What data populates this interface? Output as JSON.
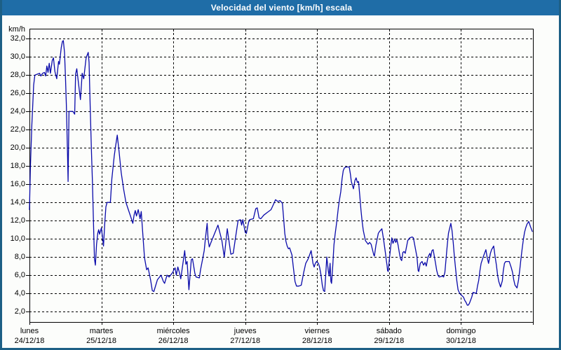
{
  "window": {
    "title": "Velocidad del viento [km/h] escala"
  },
  "colors": {
    "title_bar_bg": "#1f6da7",
    "title_text": "#ffffff",
    "window_border": "#1d5f85",
    "background": "#fcfdfb",
    "plot_border": "#000000",
    "gridline": "#000000",
    "line": "#0a0aaa",
    "label_text": "#000000"
  },
  "chart_data": {
    "type": "line",
    "title": "Velocidad del viento [km/h] escala",
    "series_name": "Velocidad del viento",
    "ylabel": "km/h",
    "grid": "dashed",
    "legend": "none",
    "y_axis": {
      "tick_values": [
        2,
        4,
        6,
        8,
        10,
        12,
        14,
        16,
        18,
        20,
        22,
        24,
        26,
        28,
        30,
        32
      ],
      "tick_labels": [
        "2,0",
        "4,0",
        "6,0",
        "8,0",
        "10,0",
        "12,0",
        "14,0",
        "16,0",
        "18,0",
        "20,0",
        "22,0",
        "24,0",
        "26,0",
        "28,0",
        "30,0",
        "32,0"
      ],
      "plot_top_value": 33.1,
      "plot_bottom_value": 0.85
    },
    "x_axis": {
      "hours_total": 168,
      "days": [
        {
          "name": "lunes",
          "date": "24/12/18"
        },
        {
          "name": "martes",
          "date": "25/12/18"
        },
        {
          "name": "miércoles",
          "date": "26/12/18"
        },
        {
          "name": "jueves",
          "date": "27/12/18"
        },
        {
          "name": "viernes",
          "date": "28/12/18"
        },
        {
          "name": "sábado",
          "date": "29/12/18"
        },
        {
          "name": "domingo",
          "date": "30/12/18"
        }
      ]
    },
    "points_hours_kmh": [
      [
        0,
        13.2
      ],
      [
        0.3,
        17.8
      ],
      [
        0.8,
        22.5
      ],
      [
        1.4,
        26.9
      ],
      [
        1.8,
        28.0
      ],
      [
        2.6,
        28.1
      ],
      [
        3.4,
        28.2
      ],
      [
        3.8,
        27.9
      ],
      [
        4.4,
        28.2
      ],
      [
        5,
        28.3
      ],
      [
        5.4,
        27.9
      ],
      [
        5.8,
        29.0
      ],
      [
        6.2,
        28.3
      ],
      [
        6.6,
        29.3
      ],
      [
        7,
        28.2
      ],
      [
        7.6,
        29.6
      ],
      [
        8,
        29.9
      ],
      [
        8.5,
        28.4
      ],
      [
        9.1,
        27.6
      ],
      [
        9.7,
        29.5
      ],
      [
        10,
        29.2
      ],
      [
        10.6,
        31.0
      ],
      [
        11,
        31.7
      ],
      [
        11.3,
        31.8
      ],
      [
        11.7,
        30.5
      ],
      [
        12,
        27.9
      ],
      [
        12.3,
        24.8
      ],
      [
        12.7,
        19.3
      ],
      [
        12.9,
        16.3
      ],
      [
        13.2,
        24.0
      ],
      [
        14.5,
        24.0
      ],
      [
        15.1,
        23.7
      ],
      [
        15.4,
        28.1
      ],
      [
        15.8,
        28.7
      ],
      [
        16.4,
        27.0
      ],
      [
        17,
        25.3
      ],
      [
        17.6,
        28.2
      ],
      [
        18.1,
        27.6
      ],
      [
        18.9,
        29.9
      ],
      [
        19.6,
        30.5
      ],
      [
        19.9,
        29.4
      ],
      [
        20.3,
        24.0
      ],
      [
        20.7,
        19.4
      ],
      [
        21,
        16.3
      ],
      [
        21.4,
        11.2
      ],
      [
        21.7,
        7.8
      ],
      [
        22,
        7.1
      ],
      [
        22.4,
        9.4
      ],
      [
        22.8,
        10.6
      ],
      [
        23.1,
        11.0
      ],
      [
        23.4,
        10.5
      ],
      [
        24,
        11.2
      ],
      [
        24.7,
        9.2
      ],
      [
        25.1,
        11.6
      ],
      [
        25.5,
        13.5
      ],
      [
        25.9,
        14.0
      ],
      [
        27,
        14.0
      ],
      [
        27.5,
        16.6
      ],
      [
        28.3,
        19.1
      ],
      [
        28.7,
        20.1
      ],
      [
        29.3,
        21.4
      ],
      [
        29.9,
        19.6
      ],
      [
        30.6,
        17.3
      ],
      [
        31.4,
        15.5
      ],
      [
        32.2,
        14.0
      ],
      [
        33,
        13.2
      ],
      [
        33.8,
        12.4
      ],
      [
        34.5,
        11.7
      ],
      [
        34.9,
        12.6
      ],
      [
        35.3,
        13.1
      ],
      [
        35.7,
        12.5
      ],
      [
        36.3,
        13.2
      ],
      [
        36.9,
        12.2
      ],
      [
        37.3,
        13.0
      ],
      [
        38,
        9.7
      ],
      [
        38.4,
        7.9
      ],
      [
        39.1,
        6.6
      ],
      [
        39.6,
        6.8
      ],
      [
        40.4,
        5.5
      ],
      [
        41,
        4.3
      ],
      [
        41.5,
        4.2
      ],
      [
        42.7,
        5.5
      ],
      [
        43.9,
        6.0
      ],
      [
        44.7,
        5.3
      ],
      [
        45.1,
        5.1
      ],
      [
        45.9,
        6.0
      ],
      [
        46.6,
        5.8
      ],
      [
        47.8,
        6.3
      ],
      [
        48.2,
        6.6
      ],
      [
        48.6,
        6.8
      ],
      [
        49,
        6.0
      ],
      [
        49.5,
        6.9
      ],
      [
        50.1,
        6.2
      ],
      [
        50.5,
        5.6
      ],
      [
        51.8,
        8.7
      ],
      [
        52.2,
        7.2
      ],
      [
        52.6,
        7.5
      ],
      [
        53.2,
        4.4
      ],
      [
        54,
        7.7
      ],
      [
        54.4,
        7.8
      ],
      [
        55.2,
        6.2
      ],
      [
        55.6,
        5.8
      ],
      [
        56.7,
        5.7
      ],
      [
        57.1,
        6.6
      ],
      [
        57.9,
        8.0
      ],
      [
        58.3,
        8.7
      ],
      [
        58.7,
        10.0
      ],
      [
        59.3,
        11.7
      ],
      [
        59.6,
        10.0
      ],
      [
        60,
        9.1
      ],
      [
        60.7,
        9.7
      ],
      [
        62.9,
        11.5
      ],
      [
        64.2,
        9.8
      ],
      [
        65,
        8.0
      ],
      [
        66,
        11.1
      ],
      [
        67.2,
        8.3
      ],
      [
        68,
        8.4
      ],
      [
        68.8,
        10.2
      ],
      [
        69.6,
        12.0
      ],
      [
        70.4,
        12.1
      ],
      [
        70.8,
        11.5
      ],
      [
        71.2,
        12.1
      ],
      [
        72,
        10.7
      ],
      [
        72.4,
        10.6
      ],
      [
        73.1,
        11.8
      ],
      [
        73.5,
        12.1
      ],
      [
        74.7,
        12.2
      ],
      [
        75.5,
        13.3
      ],
      [
        76,
        13.4
      ],
      [
        76.6,
        12.3
      ],
      [
        77.2,
        12.2
      ],
      [
        78.2,
        12.6
      ],
      [
        79.4,
        12.9
      ],
      [
        80.6,
        13.2
      ],
      [
        81.3,
        13.7
      ],
      [
        82.1,
        14.3
      ],
      [
        82.9,
        14.1
      ],
      [
        83.6,
        14.2
      ],
      [
        84.4,
        13.9
      ],
      [
        84.8,
        12.3
      ],
      [
        85.2,
        10.6
      ],
      [
        85.6,
        9.7
      ],
      [
        86,
        9.2
      ],
      [
        86.4,
        8.9
      ],
      [
        86.8,
        9.0
      ],
      [
        87.6,
        8.2
      ],
      [
        88,
        7.0
      ],
      [
        88.6,
        5.3
      ],
      [
        89.1,
        4.8
      ],
      [
        89.9,
        4.8
      ],
      [
        90.7,
        4.9
      ],
      [
        91.5,
        6.3
      ],
      [
        92.2,
        7.3
      ],
      [
        93,
        7.8
      ],
      [
        94,
        8.7
      ],
      [
        94.6,
        7.3
      ],
      [
        95,
        6.9
      ],
      [
        95.4,
        7.3
      ],
      [
        95.8,
        7.5
      ],
      [
        96.4,
        7.3
      ],
      [
        96.8,
        6.9
      ],
      [
        97.3,
        6.0
      ],
      [
        97.7,
        4.9
      ],
      [
        98.1,
        4.3
      ],
      [
        98.5,
        4.2
      ],
      [
        98.9,
        6.3
      ],
      [
        99.2,
        8.0
      ],
      [
        99.7,
        6.5
      ],
      [
        100,
        5.9
      ],
      [
        100.3,
        7.3
      ],
      [
        100.6,
        5.3
      ],
      [
        100.8,
        5.1
      ],
      [
        101.2,
        7.0
      ],
      [
        101.6,
        9.3
      ],
      [
        102,
        10.5
      ],
      [
        102.4,
        11.5
      ],
      [
        102.8,
        12.6
      ],
      [
        103.1,
        13.5
      ],
      [
        103.5,
        14.4
      ],
      [
        103.9,
        15.2
      ],
      [
        104.3,
        16.6
      ],
      [
        104.7,
        17.5
      ],
      [
        105.1,
        17.8
      ],
      [
        105.8,
        17.9
      ],
      [
        106.7,
        17.9
      ],
      [
        107.1,
        17.1
      ],
      [
        107.4,
        16.3
      ],
      [
        108.1,
        15.5
      ],
      [
        108.6,
        16.4
      ],
      [
        109,
        16.7
      ],
      [
        109.4,
        16.2
      ],
      [
        109.8,
        16.3
      ],
      [
        110.2,
        14.8
      ],
      [
        110.6,
        13.2
      ],
      [
        111,
        11.9
      ],
      [
        111.4,
        10.9
      ],
      [
        112.1,
        9.8
      ],
      [
        113,
        9.4
      ],
      [
        113.5,
        9.6
      ],
      [
        114,
        9.4
      ],
      [
        114.9,
        8.2
      ],
      [
        115.1,
        8.1
      ],
      [
        115.6,
        9.3
      ],
      [
        116.4,
        10.6
      ],
      [
        116.8,
        10.8
      ],
      [
        117.6,
        11.1
      ],
      [
        118.2,
        9.8
      ],
      [
        118.8,
        8.4
      ],
      [
        119,
        7.8
      ],
      [
        119.3,
        7.1
      ],
      [
        119.5,
        6.5
      ],
      [
        119.7,
        6.4
      ],
      [
        120.1,
        7.8
      ],
      [
        120.6,
        9.3
      ],
      [
        120.9,
        10.1
      ],
      [
        121.3,
        9.5
      ],
      [
        121.9,
        10.0
      ],
      [
        122.2,
        9.6
      ],
      [
        122.6,
        9.9
      ],
      [
        123,
        9.3
      ],
      [
        123.4,
        8.5
      ],
      [
        123.8,
        7.8
      ],
      [
        124.2,
        7.6
      ],
      [
        124.6,
        8.5
      ],
      [
        125,
        8.6
      ],
      [
        125.4,
        8.4
      ],
      [
        126.2,
        9.8
      ],
      [
        126.9,
        10.1
      ],
      [
        127.7,
        10.2
      ],
      [
        128.1,
        10.1
      ],
      [
        129.3,
        8.0
      ],
      [
        129.7,
        6.5
      ],
      [
        129.9,
        6.4
      ],
      [
        130.4,
        7.3
      ],
      [
        131,
        7.5
      ],
      [
        131.5,
        7.1
      ],
      [
        132,
        7.4
      ],
      [
        132.4,
        7.0
      ],
      [
        133,
        8.0
      ],
      [
        133.6,
        8.4
      ],
      [
        133.9,
        8.0
      ],
      [
        134.3,
        8.7
      ],
      [
        134.7,
        8.8
      ],
      [
        135.5,
        7.3
      ],
      [
        135.9,
        6.5
      ],
      [
        136.3,
        6.0
      ],
      [
        136.7,
        5.8
      ],
      [
        137.8,
        5.9
      ],
      [
        138.2,
        5.8
      ],
      [
        138.6,
        6.3
      ],
      [
        139,
        7.8
      ],
      [
        139.4,
        9.3
      ],
      [
        139.8,
        10.6
      ],
      [
        140.6,
        11.7
      ],
      [
        141,
        10.9
      ],
      [
        141.4,
        9.6
      ],
      [
        141.8,
        8.0
      ],
      [
        142.2,
        6.7
      ],
      [
        142.6,
        5.4
      ],
      [
        143,
        4.4
      ],
      [
        143.4,
        4.1
      ],
      [
        143.8,
        3.9
      ],
      [
        144.8,
        3.6
      ],
      [
        145.3,
        3.2
      ],
      [
        145.7,
        3.0
      ],
      [
        146.1,
        2.7
      ],
      [
        146.4,
        2.7
      ],
      [
        146.8,
        2.9
      ],
      [
        147.6,
        3.6
      ],
      [
        148,
        4.1
      ],
      [
        149.1,
        4.0
      ],
      [
        149.5,
        4.8
      ],
      [
        149.9,
        5.4
      ],
      [
        150.3,
        6.5
      ],
      [
        150.7,
        7.3
      ],
      [
        151.5,
        8.1
      ],
      [
        152.3,
        8.8
      ],
      [
        152.7,
        8.0
      ],
      [
        153.2,
        7.3
      ],
      [
        153.8,
        8.4
      ],
      [
        154.2,
        8.8
      ],
      [
        154.9,
        9.2
      ],
      [
        155.4,
        8.0
      ],
      [
        155.8,
        7.1
      ],
      [
        156.2,
        6.0
      ],
      [
        156.6,
        5.3
      ],
      [
        157.2,
        4.7
      ],
      [
        157.8,
        5.4
      ],
      [
        158.1,
        6.5
      ],
      [
        158.5,
        7.3
      ],
      [
        158.9,
        7.5
      ],
      [
        160.1,
        7.5
      ],
      [
        160.5,
        7.1
      ],
      [
        160.8,
        6.8
      ],
      [
        161.2,
        6.3
      ],
      [
        161.6,
        5.5
      ],
      [
        162,
        4.9
      ],
      [
        162.7,
        4.6
      ],
      [
        163.2,
        5.5
      ],
      [
        163.6,
        6.6
      ],
      [
        164,
        7.8
      ],
      [
        164.4,
        8.9
      ],
      [
        164.8,
        9.9
      ],
      [
        165.2,
        10.7
      ],
      [
        165.6,
        11.2
      ],
      [
        166,
        11.6
      ],
      [
        166.6,
        11.9
      ],
      [
        167.2,
        11.3
      ],
      [
        167.8,
        10.8
      ]
    ]
  }
}
